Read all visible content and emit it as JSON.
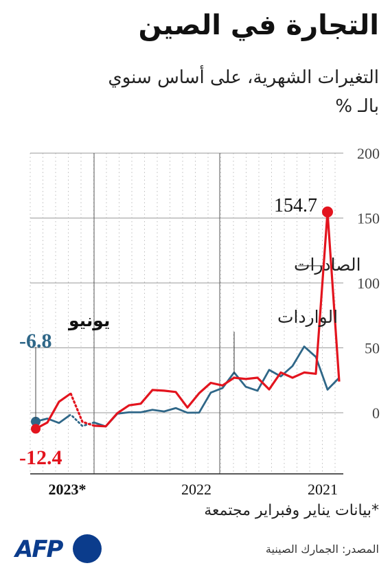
{
  "header": {
    "title": "التجارة في الصين",
    "subtitle_line1": "التغيرات الشهرية، على أساس سنوي",
    "subtitle_line2": "بالـ %"
  },
  "footer": {
    "footnote": "*بيانات يناير وفبراير مجتمعة",
    "source": "المصدر: الجمارك الصينية",
    "logo_text": "AFP"
  },
  "colors": {
    "exports": "#e3141e",
    "imports": "#2f6788",
    "grid": "#bdbdbd",
    "axis": "#555555"
  },
  "chart_data": {
    "type": "line",
    "x_axis": "time, reversed (2021 on right, 2023 on left)",
    "x_tick_labels": [
      "2023*",
      "2022",
      "2021"
    ],
    "ylim": [
      -20,
      200
    ],
    "y_ticks": [
      0,
      50,
      100,
      150,
      200
    ],
    "grid": true,
    "x": [
      "2021-01/02",
      "2021-03",
      "2021-04",
      "2021-05",
      "2021-06",
      "2021-07",
      "2021-08",
      "2021-09",
      "2021-10",
      "2021-11",
      "2021-12",
      "2022-01/02",
      "2022-03",
      "2022-04",
      "2022-05",
      "2022-06",
      "2022-07",
      "2022-08",
      "2022-09",
      "2022-10",
      "2022-11",
      "2022-12",
      "2023-01/02",
      "2023-03",
      "2023-04",
      "2023-05",
      "2023-06"
    ],
    "series": [
      {
        "name": "الصادرات",
        "key": "exports",
        "values": [
          24.0,
          154.7,
          30.0,
          31.0,
          27.0,
          31.0,
          18.0,
          27.0,
          26.0,
          27.0,
          21.0,
          23.0,
          15.0,
          4.0,
          16.0,
          17.0,
          17.5,
          7.0,
          5.7,
          -0.3,
          -10.5,
          -10.0,
          -7.0,
          14.8,
          8.5,
          -7.5,
          -12.4
        ],
        "label_value": "154.7",
        "end_label_value": "-12.4"
      },
      {
        "name": "الواردات",
        "key": "imports",
        "values": [
          27.0,
          17.8,
          43.0,
          51.0,
          36.0,
          28.0,
          33.0,
          17.0,
          20.0,
          31.0,
          19.0,
          15.5,
          0.1,
          0.0,
          3.6,
          1.0,
          2.3,
          0.3,
          0.3,
          -0.7,
          -10.6,
          -7.5,
          -10.2,
          -1.4,
          -7.9,
          -4.5,
          -6.8
        ],
        "end_label_value": "-6.8"
      }
    ],
    "annotations": {
      "june_label": "يونيو",
      "exports_label": "الصادرات",
      "imports_label": "الواردات"
    }
  }
}
